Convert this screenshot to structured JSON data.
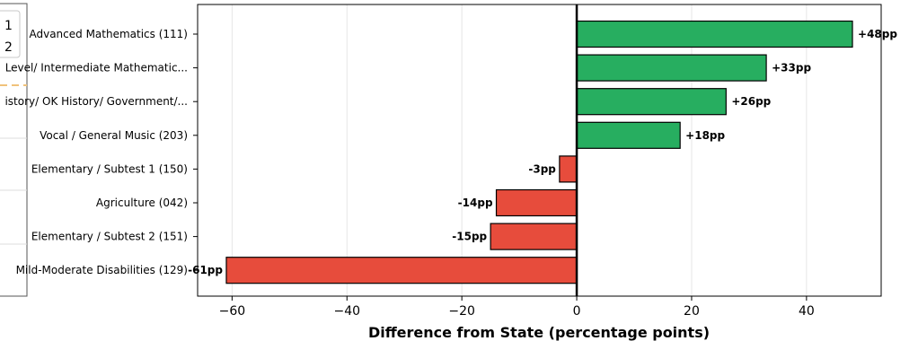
{
  "chart_data": {
    "type": "bar",
    "orientation": "horizontal",
    "title": "",
    "xlabel": "Difference from State (percentage points)",
    "ylabel": "",
    "xlim": [
      -66,
      53
    ],
    "xticks": [
      -60,
      -40,
      -20,
      0,
      20,
      40
    ],
    "xtick_labels": [
      "−60",
      "−40",
      "−20",
      "0",
      "20",
      "40"
    ],
    "grid": "x",
    "categories": [
      "Advanced Mathematics (111)",
      "Level/ Intermediate Mathematic...",
      "istory/ OK History/ Government/...",
      "Vocal / General Music (203)",
      "Elementary / Subtest 1 (150)",
      "Agriculture (042)",
      "Elementary / Subtest 2 (151)",
      "Mild-Moderate Disabilities (129)"
    ],
    "values": [
      48,
      33,
      26,
      18,
      -3,
      -14,
      -15,
      -61
    ],
    "value_labels": [
      "+48pp",
      "+33pp",
      "+26pp",
      "+18pp",
      "-3pp",
      "-14pp",
      "-15pp",
      "-61pp"
    ],
    "colors": {
      "positive": "#27ae60",
      "negative": "#e74c3c",
      "edge": "#000000",
      "zero_line": "#000000",
      "grid": "#e6e6e6"
    },
    "legend_fragment": {
      "labels": [
        "1",
        "2"
      ],
      "line_color": "#f0c27a"
    }
  }
}
